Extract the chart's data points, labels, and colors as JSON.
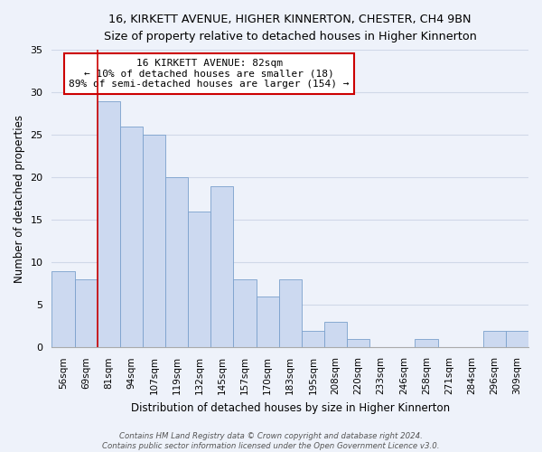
{
  "title1": "16, KIRKETT AVENUE, HIGHER KINNERTON, CHESTER, CH4 9BN",
  "title2": "Size of property relative to detached houses in Higher Kinnerton",
  "xlabel": "Distribution of detached houses by size in Higher Kinnerton",
  "ylabel": "Number of detached properties",
  "categories": [
    "56sqm",
    "69sqm",
    "81sqm",
    "94sqm",
    "107sqm",
    "119sqm",
    "132sqm",
    "145sqm",
    "157sqm",
    "170sqm",
    "183sqm",
    "195sqm",
    "208sqm",
    "220sqm",
    "233sqm",
    "246sqm",
    "258sqm",
    "271sqm",
    "284sqm",
    "296sqm",
    "309sqm"
  ],
  "values": [
    9,
    8,
    29,
    26,
    25,
    20,
    16,
    19,
    8,
    6,
    8,
    2,
    3,
    1,
    0,
    0,
    1,
    0,
    0,
    2,
    2
  ],
  "bar_color": "#ccd9f0",
  "bar_edge_color": "#7aa0cc",
  "highlight_bar_index": 2,
  "highlight_line_color": "#cc0000",
  "annotation_line1": "16 KIRKETT AVENUE: 82sqm",
  "annotation_line2": "← 10% of detached houses are smaller (18)",
  "annotation_line3": "89% of semi-detached houses are larger (154) →",
  "annotation_box_color": "#ffffff",
  "annotation_box_edge": "#cc0000",
  "ylim": [
    0,
    35
  ],
  "yticks": [
    0,
    5,
    10,
    15,
    20,
    25,
    30,
    35
  ],
  "footnote": "Contains HM Land Registry data © Crown copyright and database right 2024.\nContains public sector information licensed under the Open Government Licence v3.0.",
  "bg_color": "#eef2fa",
  "grid_color": "#d0d8e8"
}
